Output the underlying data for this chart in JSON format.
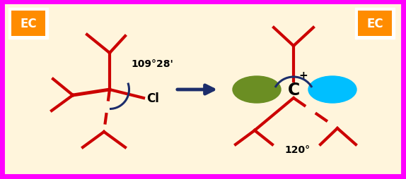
{
  "bg_color": "#FFF5DC",
  "border_color": "#FF00FF",
  "border_width": 10,
  "bond_color": "#CC0000",
  "bond_lw": 3.0,
  "arrow_color": "#1C2D6B",
  "angle_arc_color": "#1C2D6B",
  "ec_bg": "#FF8C00",
  "ec_box_bg": "#FFFFFF",
  "ec_text": "EC",
  "ec_text_color": "white",
  "angle_label_109": "109°28'",
  "angle_label_120": "120°",
  "cl_label": "Cl",
  "c_label": "C",
  "plus_label": "+",
  "ellipse_green_color": "#6B8E23",
  "ellipse_cyan_color": "#00BFFF",
  "font_size_label": 12,
  "font_size_ec": 12,
  "font_size_angle": 9,
  "font_size_c": 17,
  "font_size_plus": 11
}
